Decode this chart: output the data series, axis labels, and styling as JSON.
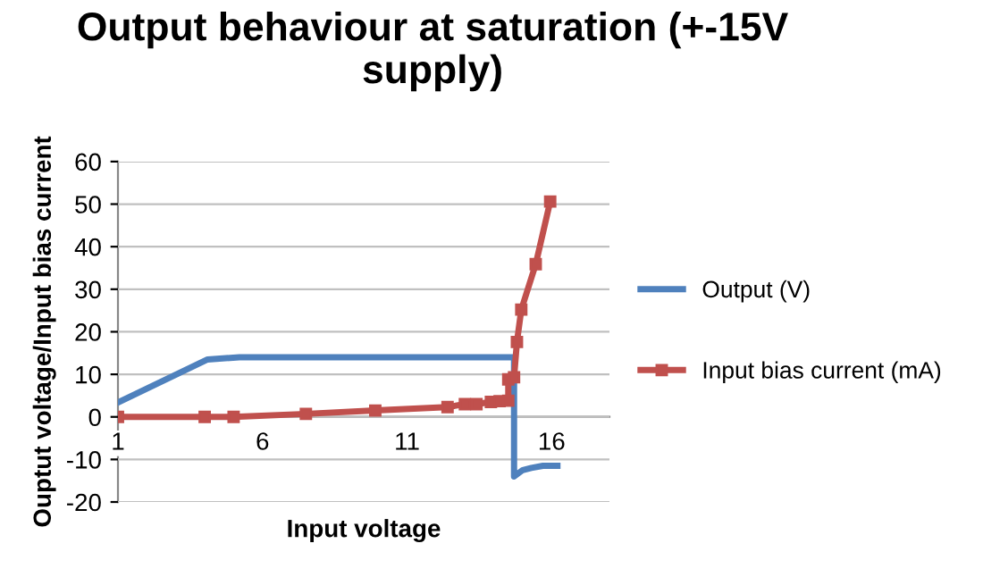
{
  "chart_data": {
    "type": "line",
    "title": "Output behaviour at saturation (+-15V supply)",
    "xlabel": "Input voltage",
    "ylabel": "Ouptut voltage/Input bias current",
    "xlim": [
      1,
      18
    ],
    "xticks": [
      1,
      6,
      11,
      16
    ],
    "ylim": [
      -20,
      60
    ],
    "yticks": [
      -20,
      -10,
      0,
      10,
      20,
      30,
      40,
      50,
      60
    ],
    "grid": "y",
    "legend": "right",
    "series": [
      {
        "name": "Output (V)",
        "color": "#4f81bd",
        "marker": "none",
        "x": [
          1,
          4.1,
          5.2,
          7.7,
          10.1,
          12.6,
          13.1,
          13.6,
          14.1,
          14.5,
          14.7,
          14.7,
          15.0,
          15.3,
          15.7,
          16.2
        ],
        "values": [
          3.4,
          13.5,
          14,
          14,
          14,
          14,
          14,
          14,
          14,
          14,
          14,
          -14,
          -12.5,
          -12,
          -11.5,
          -11.5
        ]
      },
      {
        "name": "Input bias current (mA)",
        "color": "#c0504d",
        "marker": "square",
        "x": [
          1,
          4,
          5,
          7.5,
          9.9,
          12.4,
          13,
          13.4,
          13.9,
          14.2,
          14.5,
          14.5,
          14.7,
          14.8,
          14.95,
          15.45,
          15.95
        ],
        "values": [
          0,
          0,
          0,
          0.7,
          1.5,
          2.3,
          3,
          3,
          3.5,
          3.7,
          3.8,
          8.8,
          9.3,
          17.6,
          25.2,
          35.9,
          50.6
        ]
      }
    ]
  }
}
